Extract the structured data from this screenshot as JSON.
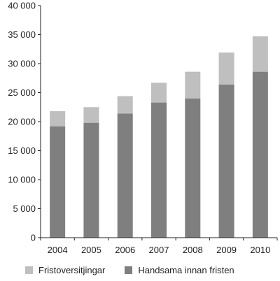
{
  "chart_data": {
    "type": "bar",
    "stacked": true,
    "categories": [
      "2004",
      "2005",
      "2006",
      "2007",
      "2008",
      "2009",
      "2010"
    ],
    "series": [
      {
        "name": "Handsama innan fristen",
        "color": "#7f7f7f",
        "values": [
          19200,
          19800,
          21400,
          23300,
          24000,
          26400,
          28600
        ]
      },
      {
        "name": "Fristoversitjingar",
        "color": "#bfbfbf",
        "values": [
          2600,
          2700,
          3000,
          3400,
          4600,
          5500,
          6100
        ]
      }
    ],
    "ylim": [
      0,
      40000
    ],
    "yticks": [
      0,
      5000,
      10000,
      15000,
      20000,
      25000,
      30000,
      35000,
      40000
    ],
    "ytick_labels": [
      "0",
      "5 000",
      "10 000",
      "15 000",
      "20 000",
      "25 000",
      "30 000",
      "35 000",
      "40 000"
    ],
    "grid": false,
    "legend_position": "bottom",
    "title": "",
    "xlabel": "",
    "ylabel": ""
  },
  "legend": {
    "items": [
      {
        "label": "Fristoversitjingar",
        "color": "#bfbfbf"
      },
      {
        "label": "Handsama innan fristen",
        "color": "#7f7f7f"
      }
    ]
  }
}
